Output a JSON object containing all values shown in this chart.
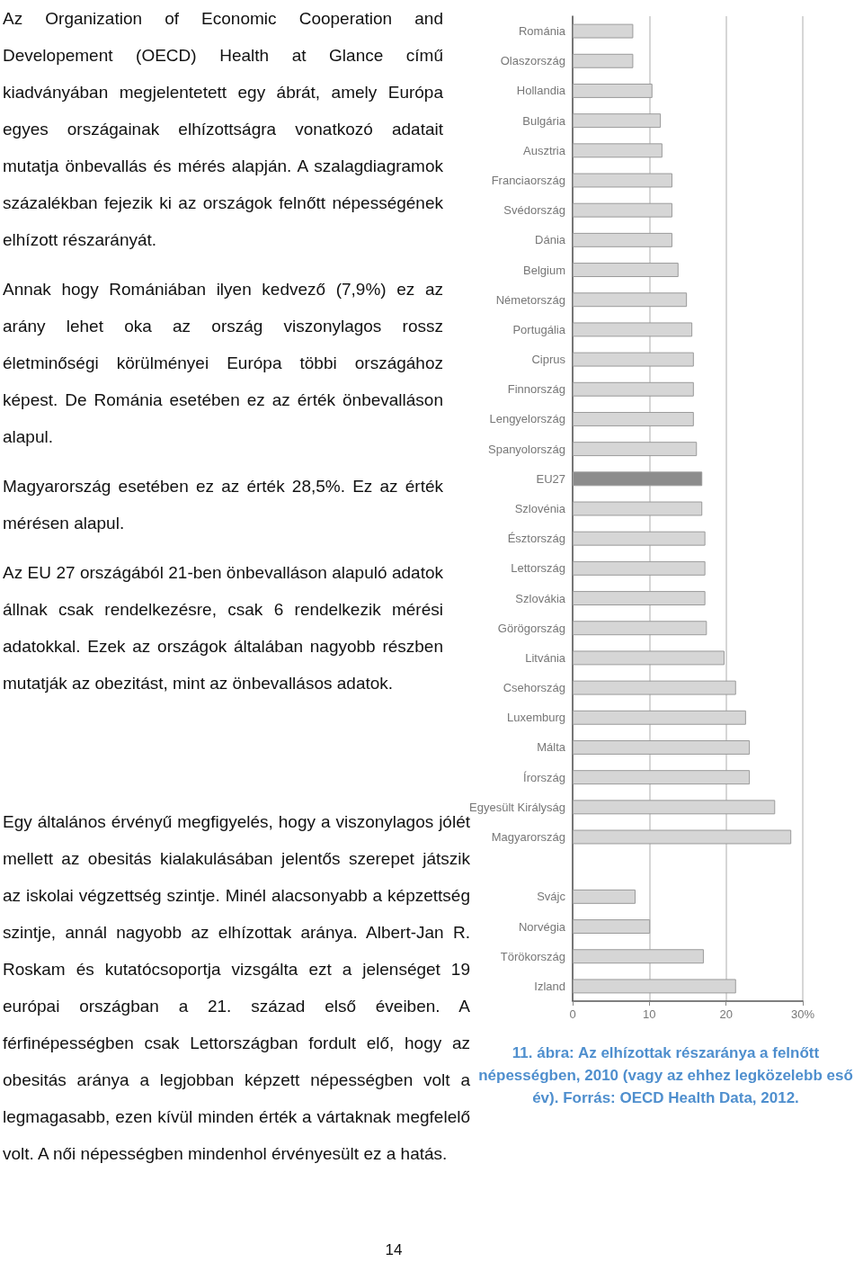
{
  "chart_data": {
    "type": "bar",
    "orientation": "horizontal",
    "title": "11. ábra:  Az elhízottak részaránya a felnőtt népességben, 2010 (vagy az ehhez legközelebb eső év). Forrás: OECD Health Data, 2012.",
    "categories": [
      "Románia",
      "Olaszország",
      "Hollandia",
      "Bulgária",
      "Ausztria",
      "Franciaország",
      "Svédország",
      "Dánia",
      "Belgium",
      "Németország",
      "Portugália",
      "Ciprus",
      "Finnország",
      "Lengyelország",
      "Spanyolország",
      "EU27",
      "Szlovénia",
      "Észtország",
      "Lettország",
      "Szlovákia",
      "Görögország",
      "Litvánia",
      "Csehország",
      "Luxemburg",
      "Málta",
      "Írország",
      "Egyesült Királyság",
      "Magyarország",
      null,
      "Svájc",
      "Norvégia",
      "Törökország",
      "Izland"
    ],
    "values": [
      7.9,
      7.9,
      10.4,
      11.5,
      11.7,
      13.0,
      13.0,
      13.0,
      13.8,
      14.9,
      15.6,
      15.8,
      15.8,
      15.8,
      16.2,
      16.9,
      16.9,
      17.3,
      17.3,
      17.3,
      17.5,
      19.8,
      21.3,
      22.6,
      23.1,
      23.1,
      26.4,
      28.5,
      null,
      8.2,
      10.1,
      17.1,
      21.3
    ],
    "colors": [
      "#d6d6d6",
      "#d6d6d6",
      "#d6d6d6",
      "#d6d6d6",
      "#d6d6d6",
      "#d6d6d6",
      "#d6d6d6",
      "#d6d6d6",
      "#d6d6d6",
      "#d6d6d6",
      "#d6d6d6",
      "#d6d6d6",
      "#d6d6d6",
      "#d6d6d6",
      "#d6d6d6",
      "#8c8c8c",
      "#d6d6d6",
      "#d6d6d6",
      "#d6d6d6",
      "#d6d6d6",
      "#d6d6d6",
      "#d6d6d6",
      "#d6d6d6",
      "#d6d6d6",
      "#d6d6d6",
      "#d6d6d6",
      "#d6d6d6",
      "#d6d6d6",
      "#d6d6d6",
      "#d6d6d6",
      "#d6d6d6",
      "#d6d6d6",
      "#d6d6d6"
    ],
    "xlim": [
      0,
      30
    ],
    "xticks": [
      0,
      10,
      20,
      {
        "value": 30,
        "label": "30%"
      }
    ],
    "grid": "x",
    "annotations": [
      "Az Organization of Economic Cooperation and Developement (OECD) Health at Glance című kiadványában megjelentetett egy ábrát, amely Európa egyes országainak elhízottságra vonatkozó adatait mutatja önbevallás és mérés alapján. A szalagdiagramok százalékban fejezik ki az országok felnőtt népességének elhízott részarányát.",
      "Annak hogy Romániában ilyen kedvező (7,9%) ez az arány lehet oka az ország viszonylagos rossz életminőségi körülményei Európa többi országához képest. De Románia esetében ez az érték önbevalláson alapul.",
      "Magyarország esetében ez az érték 28,5%. Ez az érték mérésen alapul.",
      "Az EU 27 országából 21-ben önbevalláson alapuló adatok állnak csak rendelkezésre, csak 6 rendelkezik mérési adatokkal. Ezek az országok általában nagyobb részben mutatják az obezitást, mint az önbevallásos adatok.",
      "Egy általános érvényű megfigyelés, hogy a viszonylagos jólét mellett az obesitás kialakulásában jelentős szerepet játszik az iskolai végzettség szintje. Minél alacsonyabb a képzettség szintje, annál nagyobb az elhízottak aránya. Albert-Jan R. Roskam és kutatócsoportja vizsgálta ezt a jelenséget 19 európai országban a 21. század első éveiben. A férfinépességben csak Lettországban fordult elő, hogy az obesitás aránya a legjobban képzett népességben volt a legmagasabb, ezen kívül minden érték a vártaknak megfelelő volt. A női népességben mindenhol érvényesült ez a hatás.",
      "14"
    ]
  }
}
